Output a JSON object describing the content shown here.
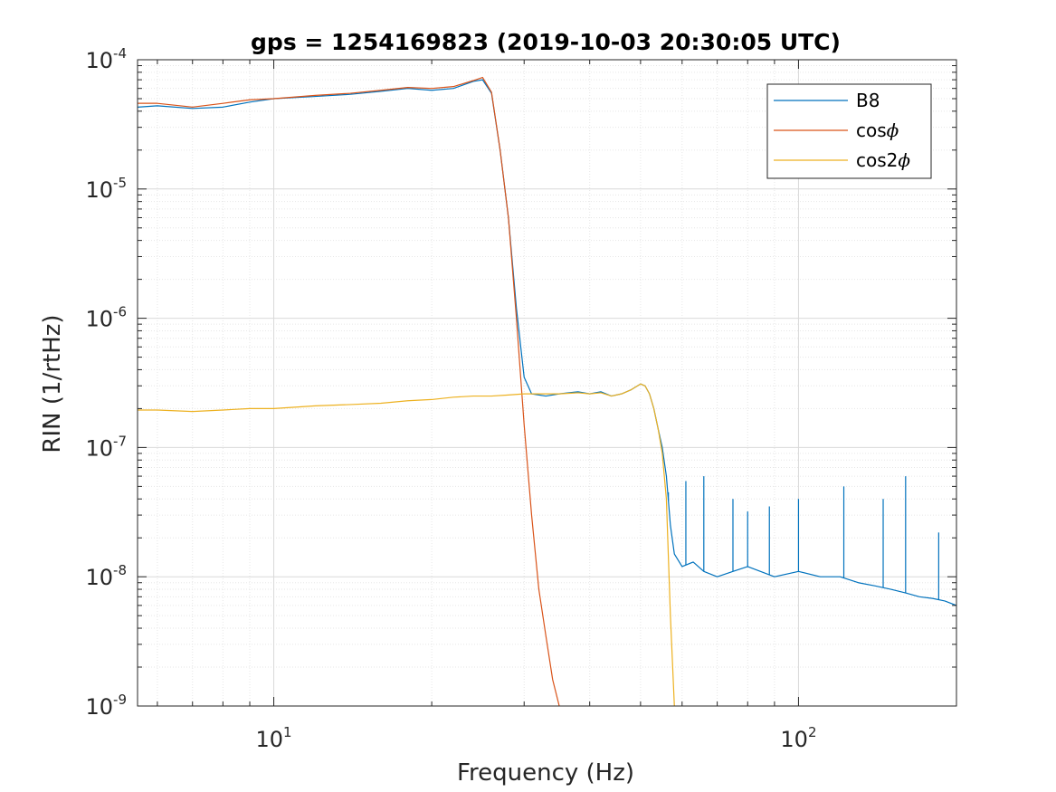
{
  "chart_data": {
    "type": "line",
    "title": "gps = 1254169823 (2019-10-03 20:30:05 UTC)",
    "xlabel": "Frequency (Hz)",
    "ylabel": "RIN (1/rtHz)",
    "xscale": "log",
    "yscale": "log",
    "xlim": [
      5.5,
      200
    ],
    "ylim": [
      1e-09,
      0.0001
    ],
    "x_ticks": [
      {
        "value": 10,
        "base": "10",
        "exp": "1"
      },
      {
        "value": 100,
        "base": "10",
        "exp": "2"
      }
    ],
    "y_ticks": [
      {
        "value": 1e-09,
        "base": "10",
        "exp": "-9"
      },
      {
        "value": 1e-08,
        "base": "10",
        "exp": "-8"
      },
      {
        "value": 1e-07,
        "base": "10",
        "exp": "-7"
      },
      {
        "value": 1e-06,
        "base": "10",
        "exp": "-6"
      },
      {
        "value": 1e-05,
        "base": "10",
        "exp": "-5"
      },
      {
        "value": 0.0001,
        "base": "10",
        "exp": "-4"
      }
    ],
    "grid": true,
    "minor_grid": true,
    "legend_position": "top-right",
    "series": [
      {
        "name": "B8",
        "legend_label": "B8",
        "color": "#0072BD",
        "x": [
          5.5,
          6,
          7,
          8,
          9,
          10,
          12,
          14,
          16,
          18,
          20,
          22,
          24,
          25,
          26,
          27,
          28,
          29,
          30,
          31,
          33,
          35,
          38,
          40,
          42,
          44,
          46,
          48,
          50,
          51,
          52,
          53,
          54,
          55,
          56,
          57,
          58,
          60,
          63,
          66,
          70,
          75,
          80,
          90,
          100,
          110,
          120,
          130,
          140,
          150,
          160,
          170,
          180,
          190,
          200
        ],
        "y": [
          4.3e-05,
          4.4e-05,
          4.2e-05,
          4.3e-05,
          4.7e-05,
          5e-05,
          5.2e-05,
          5.4e-05,
          5.7e-05,
          6e-05,
          5.8e-05,
          6e-05,
          6.8e-05,
          7e-05,
          5.5e-05,
          2e-05,
          6e-06,
          1.2e-06,
          3.5e-07,
          2.6e-07,
          2.5e-07,
          2.6e-07,
          2.7e-07,
          2.6e-07,
          2.7e-07,
          2.5e-07,
          2.6e-07,
          2.8e-07,
          3.1e-07,
          3e-07,
          2.6e-07,
          2e-07,
          1.4e-07,
          1e-07,
          6e-08,
          2.5e-08,
          1.5e-08,
          1.2e-08,
          1.3e-08,
          1.1e-08,
          1e-08,
          1.1e-08,
          1.2e-08,
          1e-08,
          1.1e-08,
          1e-08,
          1e-08,
          9e-09,
          8.5e-09,
          8e-09,
          7.5e-09,
          7e-09,
          6.8e-09,
          6.5e-09,
          6e-09
        ],
        "spikes_x": [
          56.5,
          61,
          66,
          75,
          80,
          88,
          100,
          122,
          145,
          160,
          185
        ],
        "spikes_y": [
          4.5e-08,
          5.5e-08,
          6e-08,
          4e-08,
          3.2e-08,
          3.5e-08,
          4e-08,
          5e-08,
          4e-08,
          6e-08,
          2.2e-08
        ]
      },
      {
        "name": "cosϕ",
        "legend_label": "cos",
        "legend_symbol": "ϕ",
        "color": "#D95319",
        "x": [
          5.5,
          6,
          7,
          8,
          9,
          10,
          12,
          14,
          16,
          18,
          20,
          22,
          24,
          25,
          26,
          27,
          28,
          29,
          30,
          31,
          32,
          33,
          34,
          35
        ],
        "y": [
          4.6e-05,
          4.6e-05,
          4.3e-05,
          4.6e-05,
          4.9e-05,
          5e-05,
          5.3e-05,
          5.5e-05,
          5.8e-05,
          6.1e-05,
          6e-05,
          6.2e-05,
          6.9e-05,
          7.3e-05,
          5.6e-05,
          2e-05,
          6e-06,
          1e-06,
          1.5e-07,
          3e-08,
          8e-09,
          3.5e-09,
          1.6e-09,
          1e-09
        ]
      },
      {
        "name": "cos2ϕ",
        "legend_label": "cos2",
        "legend_symbol": "ϕ",
        "color": "#EDB120",
        "x": [
          5.5,
          6,
          7,
          8,
          9,
          10,
          12,
          14,
          16,
          18,
          20,
          22,
          24,
          26,
          28,
          30,
          32,
          35,
          38,
          40,
          42,
          44,
          46,
          48,
          50,
          51,
          52,
          53,
          54,
          55,
          56,
          57,
          58
        ],
        "y": [
          1.95e-07,
          1.95e-07,
          1.9e-07,
          1.95e-07,
          2e-07,
          2e-07,
          2.1e-07,
          2.15e-07,
          2.2e-07,
          2.3e-07,
          2.35e-07,
          2.45e-07,
          2.5e-07,
          2.5e-07,
          2.55e-07,
          2.6e-07,
          2.6e-07,
          2.6e-07,
          2.65e-07,
          2.6e-07,
          2.65e-07,
          2.5e-07,
          2.6e-07,
          2.8e-07,
          3.1e-07,
          3e-07,
          2.6e-07,
          2e-07,
          1.4e-07,
          9e-08,
          4e-08,
          5e-09,
          1e-09
        ]
      }
    ]
  }
}
